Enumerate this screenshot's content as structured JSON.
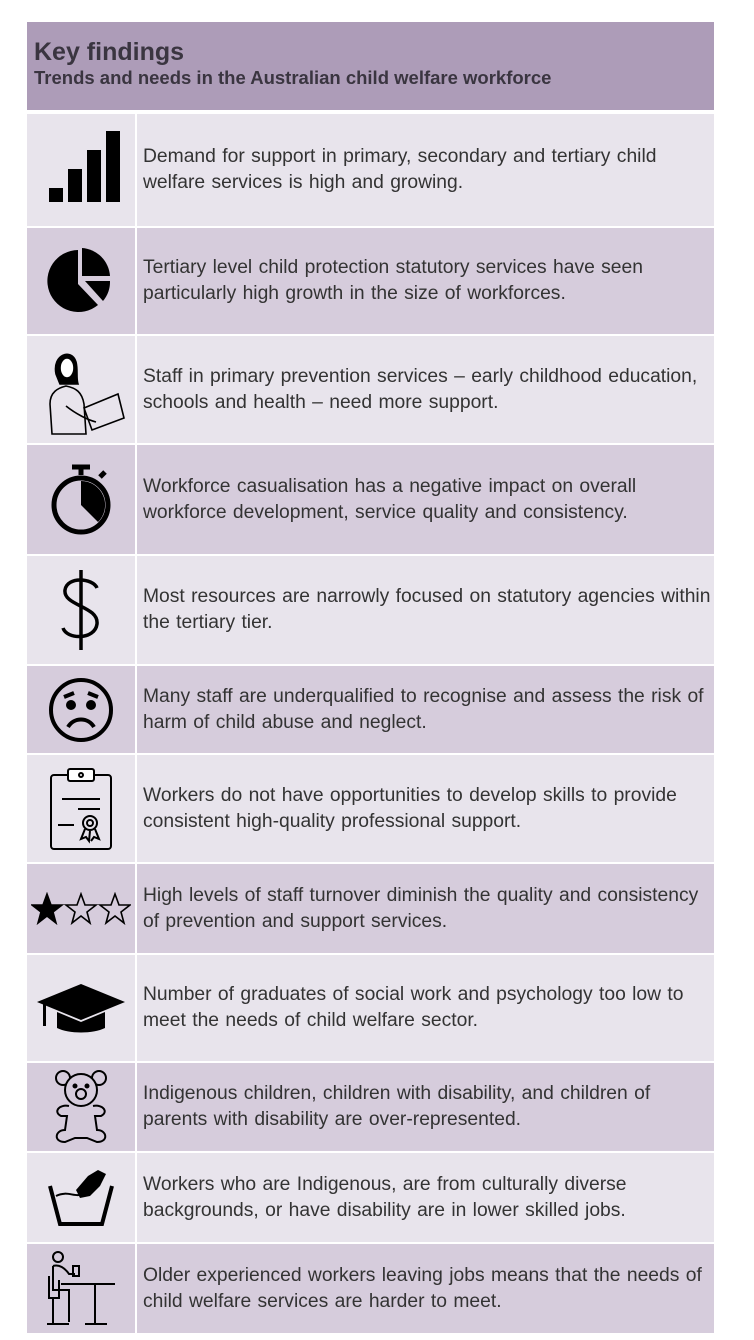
{
  "header": {
    "title": "Key findings",
    "subtitle": "Trends and needs in the Australian child welfare workforce"
  },
  "colors": {
    "header": "#ad9cb8",
    "row_light": "#e8e4ec",
    "row_dark": "#d6ccdc"
  },
  "findings": [
    {
      "icon": "bar-chart-icon",
      "text": "Demand for support in primary, secondary and tertiary child welfare services is high and growing."
    },
    {
      "icon": "pie-chart-icon",
      "text": "Tertiary level child protection statutory services have seen particularly high growth in the size of workforces."
    },
    {
      "icon": "person-laptop-icon",
      "text": "Staff in primary prevention services – early childhood education, schools and health – need more support."
    },
    {
      "icon": "stopwatch-icon",
      "text": "Workforce casualisation has a negative impact on overall workforce development, service quality and consistency."
    },
    {
      "icon": "dollar-icon",
      "text": "Most resources are narrowly focused on statutory agencies within the tertiary tier."
    },
    {
      "icon": "worried-face-icon",
      "text": "Many staff are underqualified to recognise and assess the risk of harm of child abuse and neglect."
    },
    {
      "icon": "certificate-clipboard-icon",
      "text": "Workers do not have opportunities to develop skills to provide consistent high-quality professional support."
    },
    {
      "icon": "one-star-rating-icon",
      "text": "High levels of staff turnover diminish the quality and consistency of prevention and support services."
    },
    {
      "icon": "graduation-cap-icon",
      "text": "Number of graduates of social work and psychology too low to meet the needs of child welfare sector."
    },
    {
      "icon": "teddy-bear-icon",
      "text": "Indigenous children, children with disability, and children of parents with disability are over-represented."
    },
    {
      "icon": "hand-wash-icon",
      "text": "Workers who are Indigenous, are from culturally diverse backgrounds, or have disability are in lower skilled jobs."
    },
    {
      "icon": "seated-worker-icon",
      "text": "Older experienced workers leaving jobs means that the needs of child welfare services are harder to meet."
    }
  ]
}
